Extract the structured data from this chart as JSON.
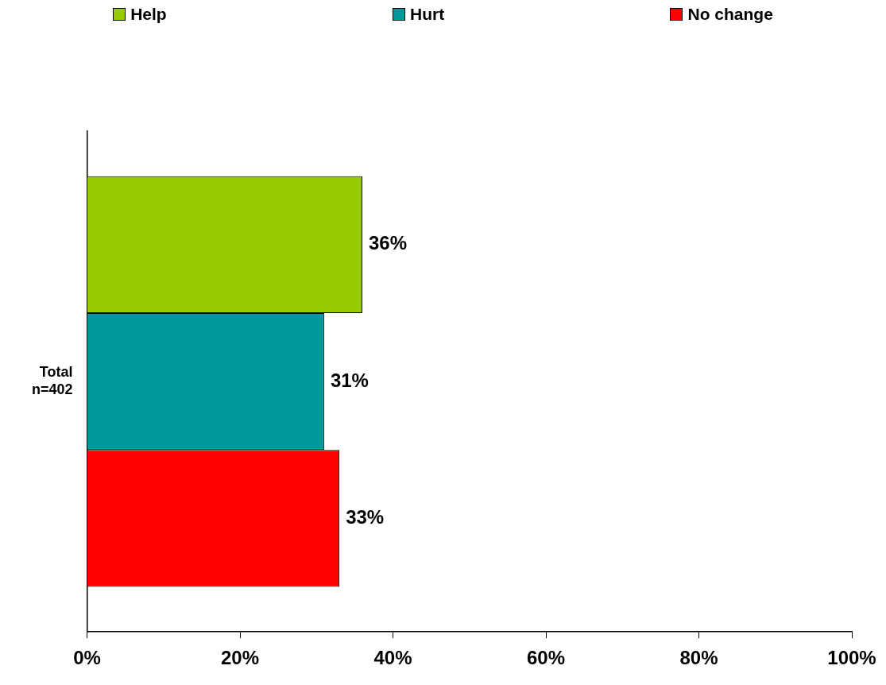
{
  "chart_data": {
    "type": "bar",
    "orientation": "horizontal",
    "categories": [
      "Total\nn=402"
    ],
    "series": [
      {
        "name": "Help",
        "color": "#99cc00",
        "values": [
          36
        ],
        "value_labels": [
          "36%"
        ]
      },
      {
        "name": "Hurt",
        "color": "#009999",
        "values": [
          31
        ],
        "value_labels": [
          "31%"
        ]
      },
      {
        "name": "No change",
        "color": "#ff0000",
        "values": [
          33
        ],
        "value_labels": [
          "33%"
        ]
      }
    ],
    "xlim": [
      0,
      100
    ],
    "xticks": [
      {
        "value": 0,
        "label": "0%"
      },
      {
        "value": 20,
        "label": "20%"
      },
      {
        "value": 40,
        "label": "40%"
      },
      {
        "value": 60,
        "label": "60%"
      },
      {
        "value": 80,
        "label": "80%"
      },
      {
        "value": 100,
        "label": "100%"
      }
    ],
    "legend": "top",
    "grid": false
  }
}
